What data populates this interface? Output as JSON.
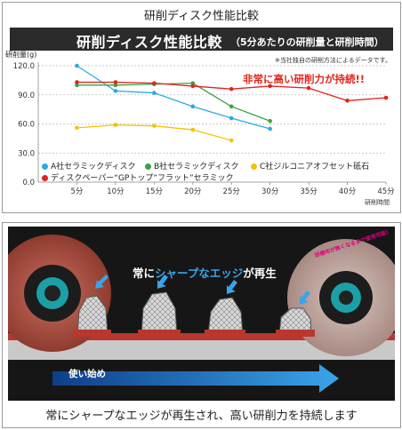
{
  "header": {
    "title": "研削ディスク性能比較",
    "bar_title": "研削ディスク性能比較",
    "bar_subtitle": "（5分あたりの研削量と研削時間）",
    "note": "※当社独自の研削方法によるデータです。",
    "highlight": "非常に高い研削力が持続!!"
  },
  "chart_data": {
    "type": "line",
    "ylabel": "研削量(g)",
    "xlabel": "研削時間",
    "x": [
      5,
      10,
      15,
      20,
      25,
      30,
      35,
      40,
      45
    ],
    "x_tick_labels": [
      "5分",
      "10分",
      "15分",
      "20分",
      "25分",
      "30分",
      "35分",
      "40分",
      "45分"
    ],
    "ylim": [
      0,
      120
    ],
    "y_ticks": [
      0,
      30,
      60,
      90,
      120
    ],
    "y_tick_labels": [
      "0.0",
      "30.0",
      "60.0",
      "90.0",
      "120.0"
    ],
    "grid": true,
    "legend_position": "bottom",
    "series": [
      {
        "name": "A社セラミックディスク",
        "color": "#29aae1",
        "x": [
          5,
          10,
          15,
          20,
          25,
          30
        ],
        "values": [
          120,
          94,
          92,
          78,
          66,
          55
        ]
      },
      {
        "name": "B社セラミックディスク",
        "color": "#3aa244",
        "x": [
          5,
          10,
          15,
          20,
          25,
          30
        ],
        "values": [
          100,
          100,
          101,
          102,
          78,
          63
        ]
      },
      {
        "name": "C社ジルコニアオフセット砥石",
        "color": "#f3c200",
        "x": [
          5,
          10,
          15,
          20,
          25
        ],
        "values": [
          56,
          59,
          58,
          54,
          43
        ]
      },
      {
        "name": "ディスクペーパー“GPトップ”フラット”セラミック",
        "color": "#e2221d",
        "x": [
          5,
          10,
          15,
          20,
          25,
          30,
          35,
          40,
          45
        ],
        "values": [
          103,
          103,
          102,
          99,
          96,
          99,
          97,
          84,
          87
        ]
      }
    ]
  },
  "illustration": {
    "banner_prefix": "常に",
    "banner_highlight": "シャープなエッジ",
    "banner_suffix": "が再生",
    "start_label": "使い始め",
    "badge_text": "研磨布が無くなるまで使用可能!",
    "caption": "常にシャープなエッジが再生され、高い研削力を持続します"
  }
}
